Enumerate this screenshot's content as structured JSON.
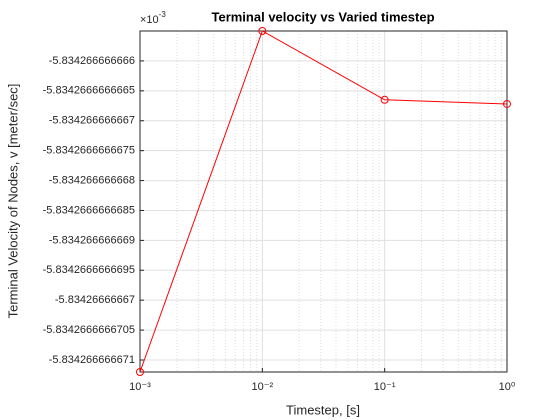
{
  "chart_data": {
    "type": "line",
    "title": "Terminal velocity vs Varied timestep",
    "xlabel": "Timestep, [s]",
    "ylabel": "Terminal Velocity of Nodes, v  [meter/sec]",
    "y_exponent": {
      "base": "×10",
      "power": "-3"
    },
    "x": [
      0.001,
      0.01,
      0.1,
      1
    ],
    "series": [
      {
        "color": "#ff0000",
        "marker": "circle",
        "values": [
          -5.8342666666712,
          -5.8342666666655,
          -5.83426666666665,
          -5.83426666666672
        ]
      }
    ],
    "xscale": "log",
    "xlim": [
      0.001,
      1
    ],
    "xticks": [
      {
        "value": 0.001,
        "label": "10⁻³"
      },
      {
        "value": 0.01,
        "label": "10⁻²"
      },
      {
        "value": 0.1,
        "label": "10⁻¹"
      },
      {
        "value": 1,
        "label": "10⁰"
      }
    ],
    "ylim": [
      -5.8342666666712,
      -5.8342666666655
    ],
    "yticks": [
      -5.834266666666,
      -5.8342666666665,
      -5.834266666667,
      -5.8342666666675,
      -5.834266666668,
      -5.8342666666685,
      -5.834266666669,
      -5.8342666666695,
      -5.83426666667,
      -5.8342666666705,
      -5.834266666671
    ],
    "grid": true,
    "minor_grid_x": true
  }
}
